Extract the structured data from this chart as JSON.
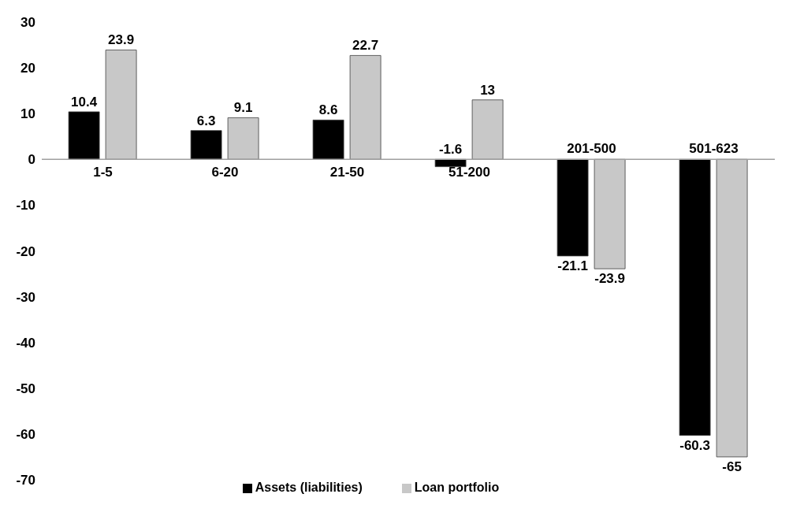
{
  "chart_data": {
    "type": "bar",
    "categories": [
      "1-5",
      "6-20",
      "21-50",
      "51-200",
      "201-500",
      "501-623"
    ],
    "series": [
      {
        "name": "Assets (liabilities)",
        "color": "#000000",
        "values": [
          10.4,
          6.3,
          8.6,
          -1.6,
          -21.1,
          -60.3
        ]
      },
      {
        "name": "Loan portfolio",
        "color": "#c8c8c8",
        "values": [
          23.9,
          9.1,
          22.7,
          13,
          -23.9,
          -65
        ]
      }
    ],
    "ylim": [
      -70,
      30
    ],
    "yticks": [
      -70,
      -60,
      -50,
      -40,
      -30,
      -20,
      -10,
      0,
      10,
      20,
      30
    ],
    "legend": "bottom",
    "data_labels": true
  }
}
